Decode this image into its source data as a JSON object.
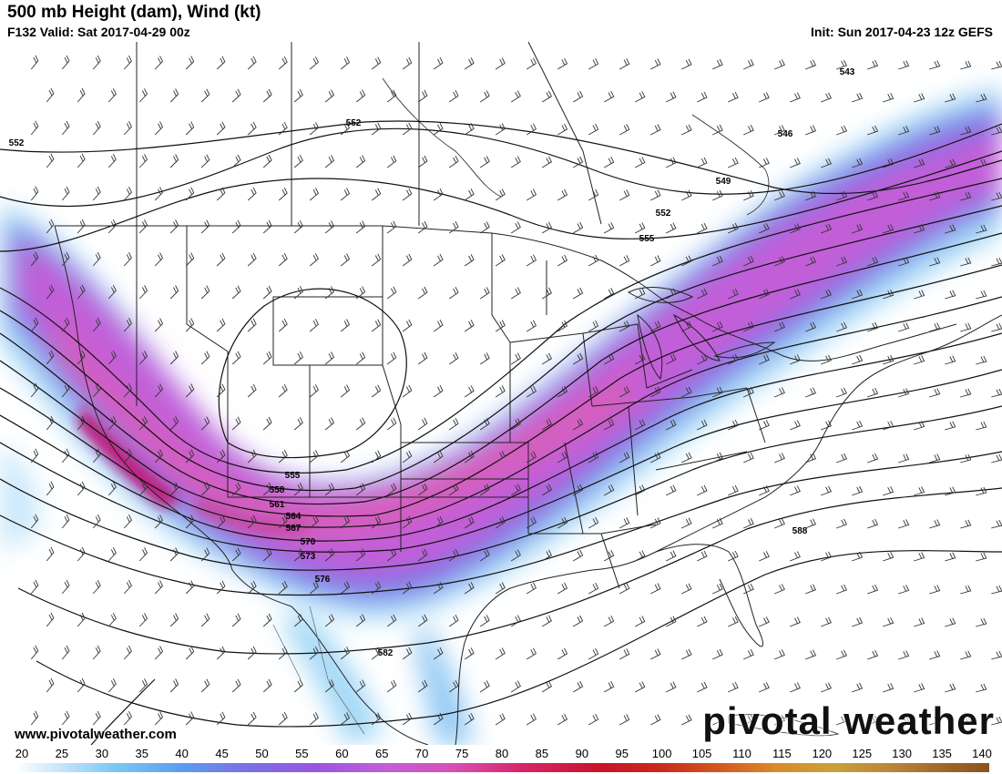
{
  "header": {
    "title": "500 mb Height (dam), Wind (kt)",
    "valid": "F132 Valid: Sat 2017-04-29 00z",
    "init": "Init: Sun 2017-04-23 12z GEFS"
  },
  "footer": {
    "url": "www.pivotalweather.com",
    "brand": "pivotal weather"
  },
  "colorbar": {
    "ticks": [
      "20",
      "25",
      "30",
      "35",
      "40",
      "45",
      "50",
      "55",
      "60",
      "65",
      "70",
      "75",
      "80",
      "85",
      "90",
      "95",
      "100",
      "105",
      "110",
      "115",
      "120",
      "125",
      "130",
      "135",
      "140"
    ]
  },
  "contour_labels": [
    {
      "text": "552"
    },
    {
      "text": "552"
    },
    {
      "text": "543"
    },
    {
      "text": "546"
    },
    {
      "text": "549"
    },
    {
      "text": "552"
    },
    {
      "text": "555"
    },
    {
      "text": "555"
    },
    {
      "text": "558"
    },
    {
      "text": "561"
    },
    {
      "text": "564"
    },
    {
      "text": "567"
    },
    {
      "text": "570"
    },
    {
      "text": "573"
    },
    {
      "text": "576"
    },
    {
      "text": "588"
    },
    {
      "text": "582"
    }
  ],
  "colors": {
    "jet_core": "#c2187a",
    "jet_mid": "#d86ad8",
    "jet_outer": "#7a5fe0",
    "weak": "#8fd0f5",
    "contour": "#111111",
    "border": "#222222"
  }
}
